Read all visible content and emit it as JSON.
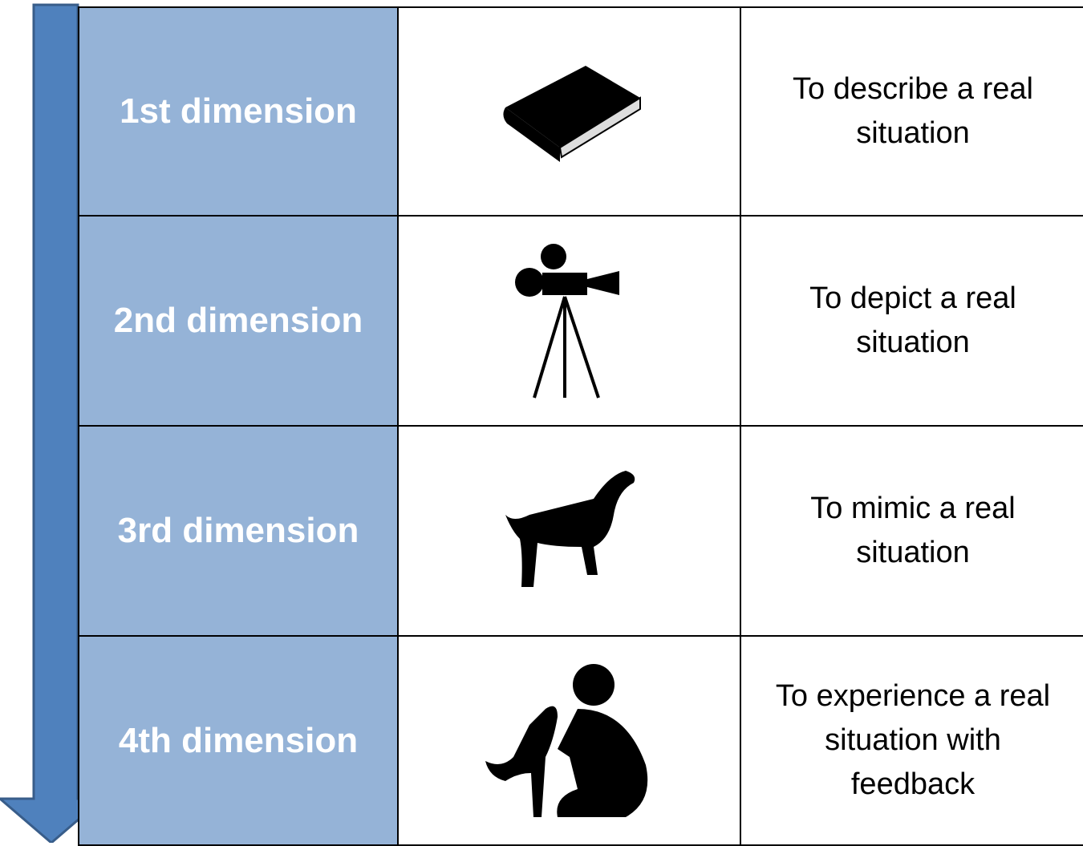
{
  "rows": [
    {
      "label": "1st dimension",
      "description": "To describe a real situation"
    },
    {
      "label": "2nd dimension",
      "description": "To depict a real situation"
    },
    {
      "label": "3rd dimension",
      "description": "To mimic a real situation"
    },
    {
      "label": "4th dimension",
      "description": "To experience a real situation with feedback"
    }
  ]
}
